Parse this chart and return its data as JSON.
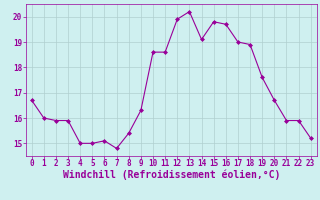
{
  "x": [
    0,
    1,
    2,
    3,
    4,
    5,
    6,
    7,
    8,
    9,
    10,
    11,
    12,
    13,
    14,
    15,
    16,
    17,
    18,
    19,
    20,
    21,
    22,
    23
  ],
  "y": [
    16.7,
    16.0,
    15.9,
    15.9,
    15.0,
    15.0,
    15.1,
    14.8,
    15.4,
    16.3,
    18.6,
    18.6,
    19.9,
    20.2,
    19.1,
    19.8,
    19.7,
    19.0,
    18.9,
    17.6,
    16.7,
    15.9,
    15.9,
    15.2
  ],
  "line_color": "#990099",
  "marker": "D",
  "marker_size": 2,
  "bg_color": "#cff0f0",
  "grid_color": "#b0d0d0",
  "tick_color": "#990099",
  "xlabel": "Windchill (Refroidissement éolien,°C)",
  "xlabel_color": "#990099",
  "ylim": [
    14.5,
    20.5
  ],
  "xlim": [
    -0.5,
    23.5
  ],
  "yticks": [
    15,
    16,
    17,
    18,
    19,
    20
  ],
  "xticks": [
    0,
    1,
    2,
    3,
    4,
    5,
    6,
    7,
    8,
    9,
    10,
    11,
    12,
    13,
    14,
    15,
    16,
    17,
    18,
    19,
    20,
    21,
    22,
    23
  ],
  "tick_fontsize": 5.5,
  "xlabel_fontsize": 7.0,
  "figwidth": 3.2,
  "figheight": 2.0,
  "dpi": 100
}
